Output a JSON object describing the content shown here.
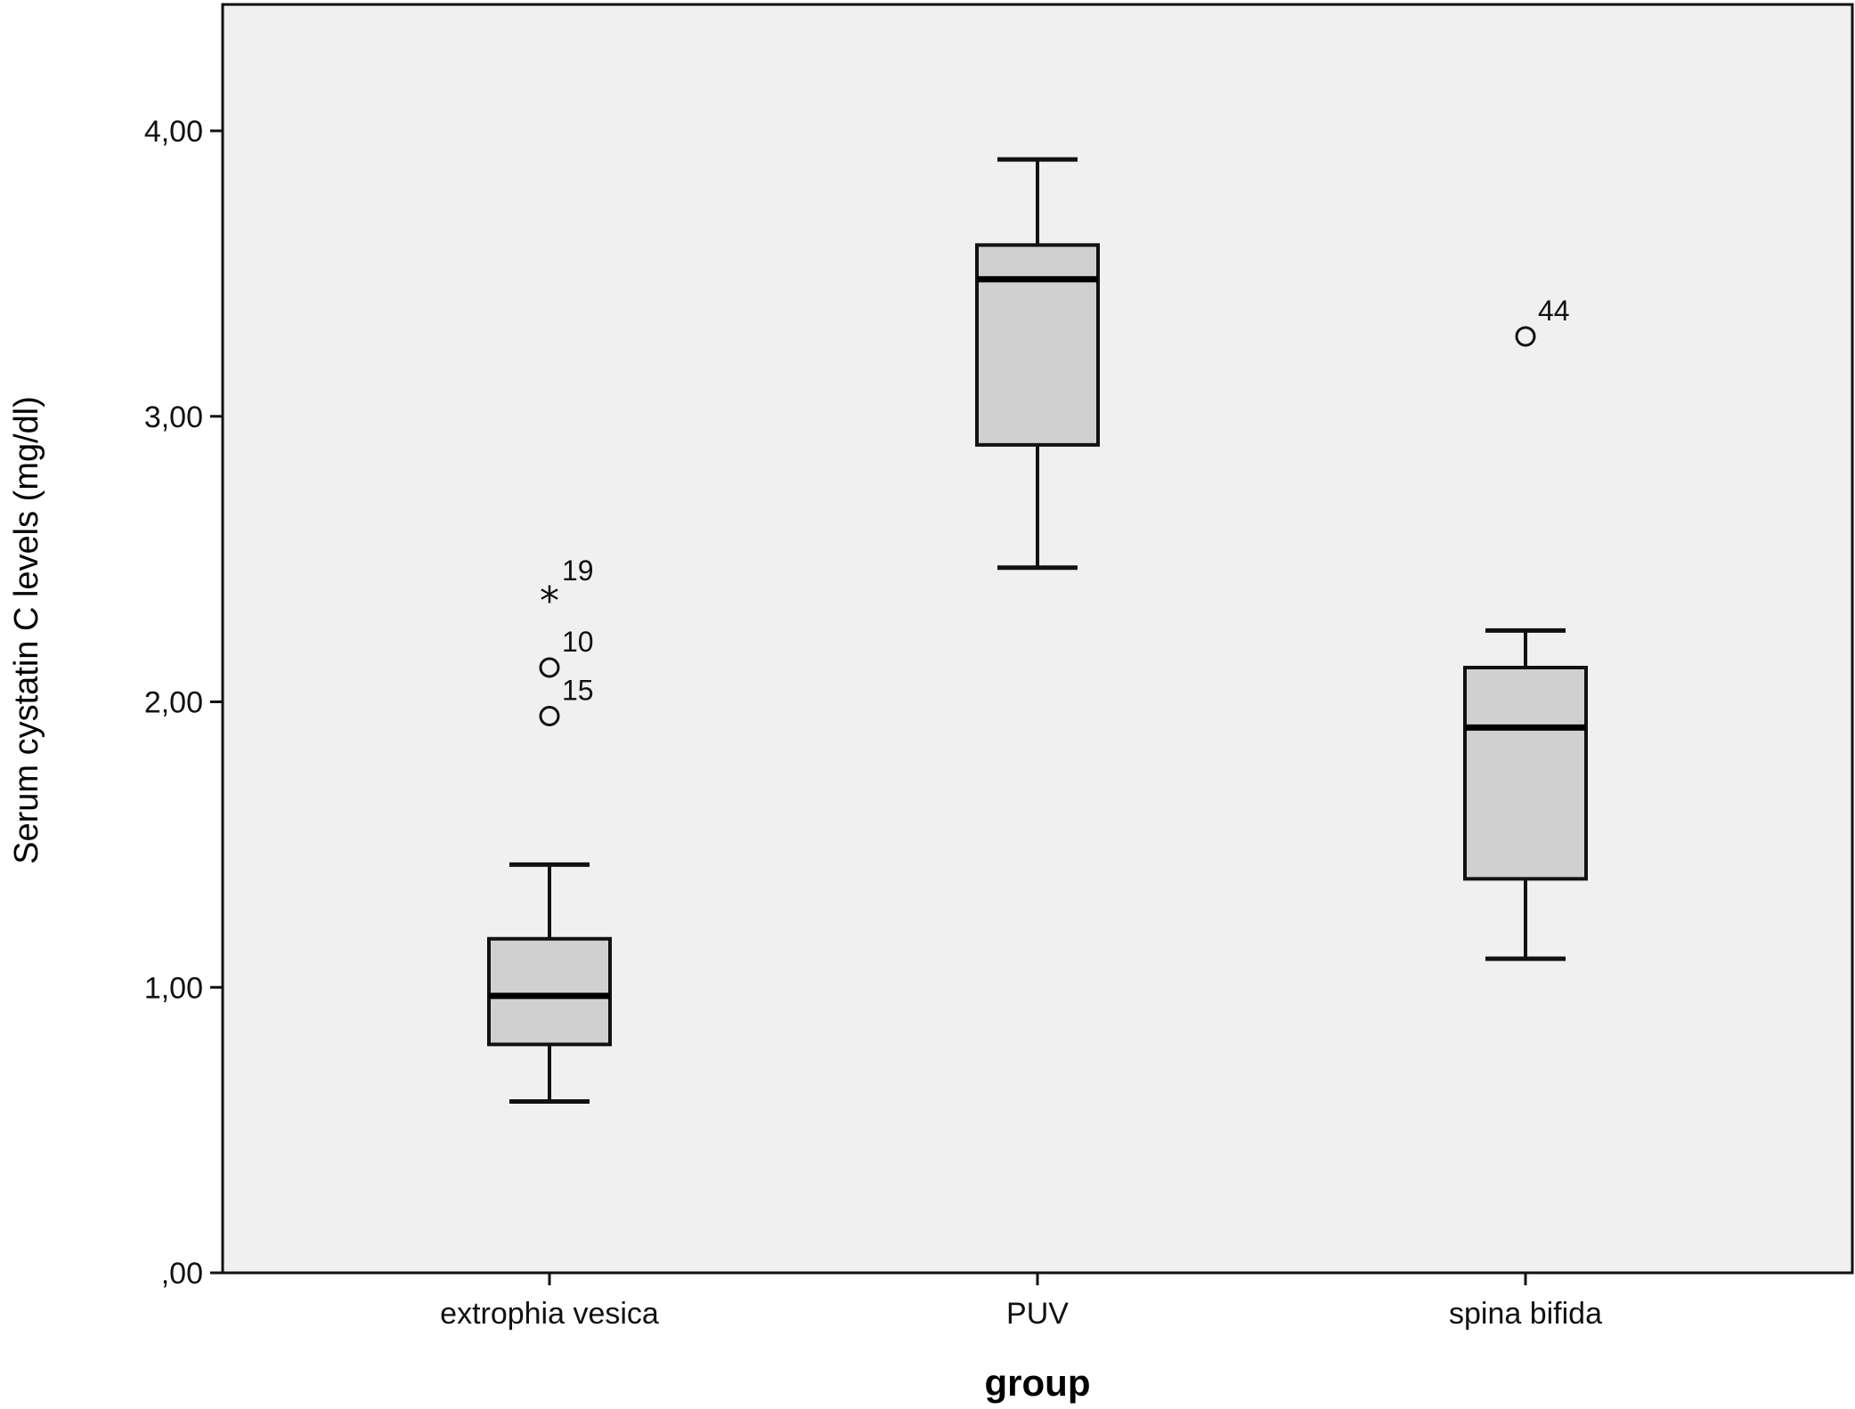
{
  "chart_data": {
    "type": "boxplot",
    "title": "",
    "xlabel": "group",
    "ylabel": "Serum cystatin C levels (mg/dl)",
    "ylim": [
      0,
      4.4
    ],
    "yticks": [
      0,
      1,
      2,
      3,
      4
    ],
    "ytick_labels": [
      ",00",
      "1,00",
      "2,00",
      "3,00",
      "4,00"
    ],
    "grid": false,
    "plot_background": "#f0f0f0",
    "box_fill": "#d0d0d0",
    "categories": [
      "extrophia vesica",
      "PUV",
      "spina bifida"
    ],
    "boxes": [
      {
        "category": "extrophia vesica",
        "whisker_low": 0.6,
        "q1": 0.8,
        "median": 0.97,
        "q3": 1.17,
        "whisker_high": 1.43,
        "outliers": [
          {
            "value": 2.37,
            "label": "19",
            "marker": "star"
          },
          {
            "value": 2.12,
            "label": "10",
            "marker": "circle"
          },
          {
            "value": 1.95,
            "label": "15",
            "marker": "circle"
          }
        ]
      },
      {
        "category": "PUV",
        "whisker_low": 2.47,
        "q1": 2.9,
        "median": 3.48,
        "q3": 3.6,
        "whisker_high": 3.9,
        "outliers": []
      },
      {
        "category": "spina bifida",
        "whisker_low": 1.1,
        "q1": 1.38,
        "median": 1.91,
        "q3": 2.12,
        "whisker_high": 2.25,
        "outliers": [
          {
            "value": 3.28,
            "label": "44",
            "marker": "circle"
          }
        ]
      }
    ]
  }
}
